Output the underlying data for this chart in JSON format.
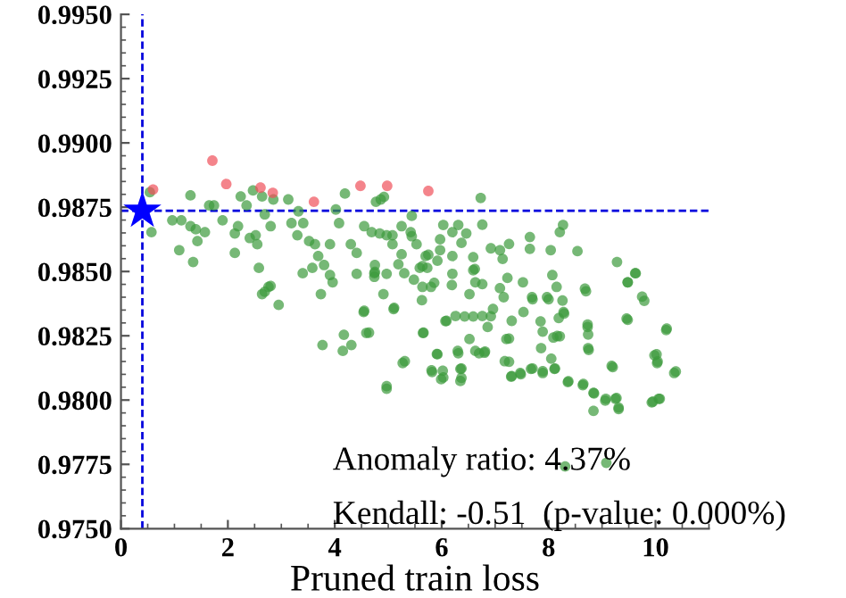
{
  "chart_data": {
    "type": "scatter",
    "xlabel": "Pruned train loss",
    "xlim": [
      0,
      11
    ],
    "xticks": [
      0,
      2,
      4,
      6,
      8,
      10
    ],
    "ylim": [
      0.975,
      0.995
    ],
    "yticks": [
      {
        "value": 0.975,
        "label": "0.9750"
      },
      {
        "value": 0.9775,
        "label": "0.9775"
      },
      {
        "value": 0.98,
        "label": "0.9800"
      },
      {
        "value": 0.9825,
        "label": "0.9825"
      },
      {
        "value": 0.985,
        "label": "0.9850"
      },
      {
        "value": 0.9875,
        "label": "0.9875"
      },
      {
        "value": 0.99,
        "label": "0.9900"
      },
      {
        "value": 0.9925,
        "label": "0.9925"
      },
      {
        "value": 0.995,
        "label": "0.9950"
      }
    ],
    "grid": false,
    "annotations": [
      "Anomaly ratio: 4.37%",
      "Kendall: -0.51  (p-value: 0.000%)"
    ],
    "ref_lines": [
      {
        "axis": "x",
        "value": 0.4,
        "color": "#0000dd",
        "line_style": "dashed"
      },
      {
        "axis": "y",
        "value": 0.98736,
        "color": "#0000dd",
        "line_style": "dashed"
      }
    ],
    "series": [
      {
        "color": "#3c9a3c",
        "marker": "circle",
        "x": [
          2.64,
          2.95,
          2.76,
          3.74,
          3.77,
          4.17,
          4.31,
          4.15,
          4.59,
          4.54,
          4.91,
          5.1,
          4.97,
          5.27,
          5.65,
          5.8,
          5.91,
          5.82,
          5.99,
          6.02,
          6.07,
          6.3,
          6.35,
          6.35,
          6.52,
          6.63,
          6.8,
          6.86,
          6.92,
          7.16,
          7.21,
          7.26,
          7.3,
          7.47,
          7.53,
          7.69,
          7.67,
          7.86,
          7.89,
          7.97,
          8.05,
          8.11,
          8.16,
          8.19,
          8.28,
          8.36,
          8.31,
          8.64,
          8.7,
          8.73,
          8.75,
          8.84,
          8.84,
          9.06,
          9.08,
          9.2,
          9.25,
          9.31,
          9.48,
          9.48,
          9.62,
          9.75,
          9.93,
          10.06,
          9.98,
          10.03,
          10.2,
          10.35,
          6.19,
          6.52,
          6.63,
          5.63,
          5.3,
          4.74,
          3.96,
          3.4,
          0.54,
          0.57,
          0.96,
          1.13,
          1.3,
          1.3,
          1.4,
          1.09,
          1.35,
          1.43,
          1.57,
          1.65,
          1.74,
          1.9,
          2.13,
          2.19,
          2.13,
          2.24,
          2.35,
          2.41,
          2.47,
          2.52,
          2.55,
          2.64,
          2.69,
          2.8,
          2.85,
          2.58,
          2.69,
          2.8,
          3.13,
          3.19,
          3.32,
          3.3,
          3.41,
          3.52,
          3.58,
          3.63,
          3.69,
          3.8,
          3.91,
          4.02,
          4.08,
          4.19,
          4.3,
          4.41,
          4.55,
          4.69,
          4.75,
          4.86,
          4.97,
          5.08,
          5.25,
          5.42,
          5.53,
          5.7,
          5.59,
          5.48,
          3.91,
          4.41,
          4.74,
          4.77,
          4.92,
          6.73,
          6.76,
          5.44,
          4.84,
          5.08,
          5.44,
          6.03,
          6.2,
          6.31,
          6.46,
          6.37,
          5.97,
          5.97,
          5.75,
          5.73,
          5.92,
          6.2,
          6.59,
          6.92,
          7.09,
          7.26,
          7.14,
          7.65,
          7.65,
          8.04,
          8.27,
          8.21,
          8.54,
          5.64,
          5.25,
          5.19,
          4.97,
          4.75,
          5.64,
          5.86,
          6.2,
          6.59,
          6.76,
          7.23,
          7.52,
          8.07,
          8.15,
          8.68,
          9.28,
          9.63,
          9.48,
          9.79,
          9.46,
          8.73,
          8.74,
          8.74,
          10.21,
          10.02,
          10.04,
          10.38,
          9.18,
          8.37,
          8.65,
          8.85,
          9.07,
          9.27,
          9.31,
          9.95,
          10.08,
          4.55,
          4.64,
          5.11,
          5.31,
          4.97,
          5.66,
          6.09,
          6.26,
          6.43,
          6.59,
          6.76,
          6.96,
          7.09,
          5.92,
          6.31,
          6.7,
          6.81,
          7.31,
          7.26,
          7.18,
          7.31,
          7.48,
          7.7,
          7.89,
          8.12,
          5.81,
          6.03,
          6.37,
          6.37,
          8.09,
          8.21,
          7.89,
          7.85,
          7.7,
          8.0,
          8.29,
          8.26,
          6.62
        ],
        "values": [
          0.98412,
          0.9837,
          0.9844,
          0.98412,
          0.98214,
          0.98254,
          0.98214,
          0.98191,
          0.98261,
          0.98342,
          0.98412,
          0.98354,
          0.98044,
          0.98144,
          0.98261,
          0.9844,
          0.98179,
          0.98109,
          0.98081,
          0.98114,
          0.98307,
          0.98191,
          0.98121,
          0.98074,
          0.98237,
          0.98191,
          0.98184,
          0.98284,
          0.98326,
          0.984,
          0.98237,
          0.98149,
          0.98091,
          0.98105,
          0.98342,
          0.984,
          0.98121,
          0.98202,
          0.98105,
          0.984,
          0.98161,
          0.98121,
          0.98249,
          0.98319,
          0.98342,
          0.9807,
          0.97742,
          0.98058,
          0.98423,
          0.98284,
          0.98195,
          0.98028,
          0.97958,
          0.97998,
          0.97756,
          0.98128,
          0.98005,
          0.97965,
          0.98458,
          0.98312,
          0.98493,
          0.98402,
          0.97991,
          0.98005,
          0.98174,
          0.98144,
          0.98272,
          0.98105,
          0.98447,
          0.98412,
          0.98458,
          0.98388,
          0.98493,
          0.98493,
          0.98458,
          0.98493,
          0.98808,
          0.98653,
          0.98699,
          0.98699,
          0.98796,
          0.98676,
          0.98664,
          0.98583,
          0.98537,
          0.98618,
          0.98653,
          0.98757,
          0.98757,
          0.98699,
          0.98648,
          0.98676,
          0.98572,
          0.98792,
          0.98757,
          0.9863,
          0.98815,
          0.98641,
          0.98606,
          0.98792,
          0.98722,
          0.98676,
          0.9878,
          0.98514,
          0.98421,
          0.98444,
          0.9878,
          0.98688,
          0.98734,
          0.98641,
          0.98688,
          0.98618,
          0.98514,
          0.98606,
          0.9856,
          0.98525,
          0.98606,
          0.98741,
          0.98688,
          0.98803,
          0.98606,
          0.98572,
          0.98676,
          0.98653,
          0.98525,
          0.9878,
          0.98641,
          0.98606,
          0.98676,
          0.98653,
          0.98606,
          0.9856,
          0.98514,
          0.98468,
          0.98486,
          0.98491,
          0.98479,
          0.98771,
          0.9879,
          0.98786,
          0.98682,
          0.98716,
          0.98648,
          0.98641,
          0.98637,
          0.98681,
          0.98653,
          0.98681,
          0.98648,
          0.98611,
          0.98625,
          0.98583,
          0.98565,
          0.98514,
          0.98542,
          0.9856,
          0.98556,
          0.9859,
          0.98583,
          0.98607,
          0.98549,
          0.98634,
          0.98588,
          0.98583,
          0.98681,
          0.98653,
          0.98579,
          0.98521,
          0.98567,
          0.98528,
          0.98491,
          0.98498,
          0.9844,
          0.98456,
          0.98491,
          0.98505,
          0.98451,
          0.98475,
          0.98458,
          0.98486,
          0.9844,
          0.98433,
          0.98537,
          0.98493,
          0.98458,
          0.98386,
          0.98317,
          0.98294,
          0.98255,
          0.98202,
          0.98278,
          0.98178,
          0.9815,
          0.98111,
          0.98133,
          0.98073,
          0.98063,
          0.98026,
          0.98005,
          0.98008,
          0.97971,
          0.97994,
          0.98005,
          0.98347,
          0.98262,
          0.98359,
          0.98151,
          0.98054,
          0.98262,
          0.98308,
          0.98327,
          0.98325,
          0.98325,
          0.98327,
          0.98354,
          0.98435,
          0.98178,
          0.98182,
          0.98182,
          0.98189,
          0.98308,
          0.98239,
          0.98151,
          0.98093,
          0.981,
          0.98123,
          0.98112,
          0.98123,
          0.98116,
          0.98088,
          0.98086,
          0.98123,
          0.98243,
          0.98248,
          0.98266,
          0.98306,
          0.98392,
          0.98392,
          0.98336,
          0.98387,
          0.9851
        ]
      },
      {
        "color": "#f0505a",
        "marker": "circle",
        "x": [
          0.6,
          1.71,
          1.97,
          2.61,
          2.84,
          3.61,
          4.48,
          4.98,
          5.75
        ],
        "values": [
          0.98819,
          0.98931,
          0.9884,
          0.98826,
          0.98806,
          0.98771,
          0.98833,
          0.98833,
          0.98813
        ]
      },
      {
        "color": "#0000ff",
        "marker": "star",
        "x": [
          0.4
        ],
        "values": [
          0.98736
        ]
      }
    ]
  }
}
